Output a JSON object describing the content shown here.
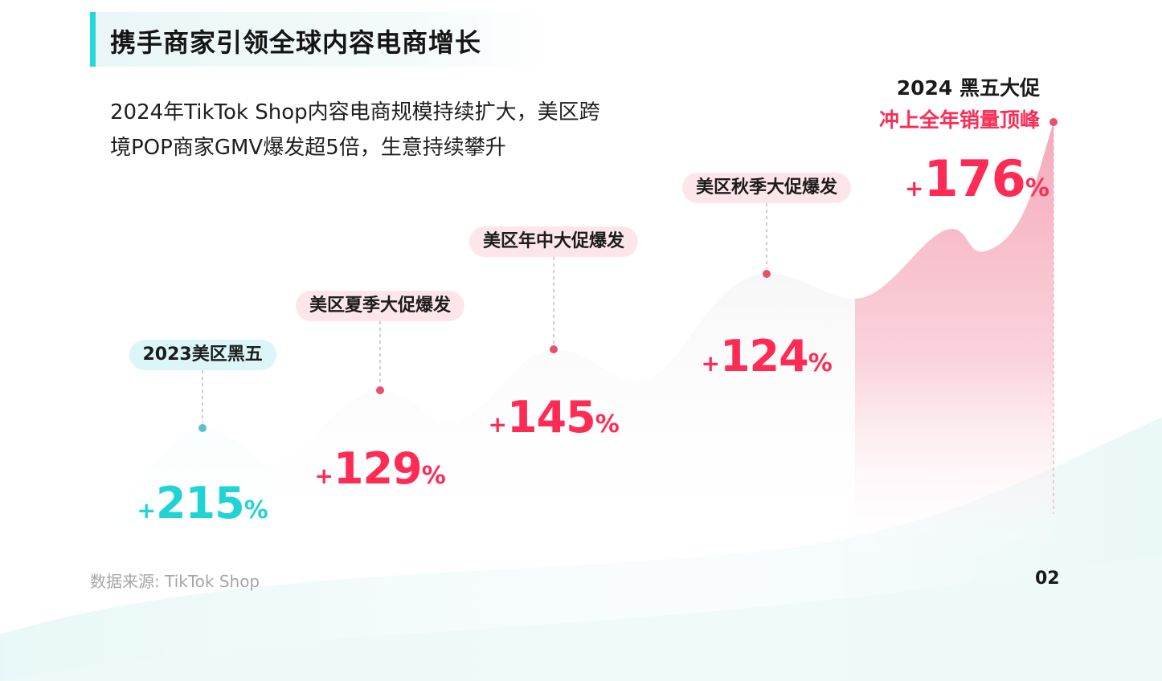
{
  "header": {
    "title": "携手商家引领全球内容电商增长",
    "subtitle_line1": "2024年TikTok  Shop内容电商规模持续扩大，美区跨",
    "subtitle_line2": "境POP商家GMV爆发超5倍，生意持续攀升"
  },
  "peak_label": {
    "title": "2024 黑五大促",
    "subtitle": "冲上全年销量顶峰"
  },
  "chart_data": {
    "type": "area",
    "categories": [
      "2023美区黑五",
      "美区夏季大促爆发",
      "美区年中大促爆发",
      "美区秋季大促爆发",
      "2024 黑五大促"
    ],
    "values": [
      215,
      129,
      145,
      124,
      176
    ],
    "value_labels": [
      "+215%",
      "+129%",
      "+145%",
      "+124%",
      "+176%"
    ],
    "unit": "%",
    "colors": {
      "first": "#22d3d6",
      "rest": "#fe2c55",
      "label_teal_bg": "#dcf5f6",
      "label_pink_bg": "#fde6ea",
      "peak_fill": "#f7b9c6"
    }
  },
  "footer": {
    "source": "数据来源: TikTok Shop",
    "page": "02"
  }
}
